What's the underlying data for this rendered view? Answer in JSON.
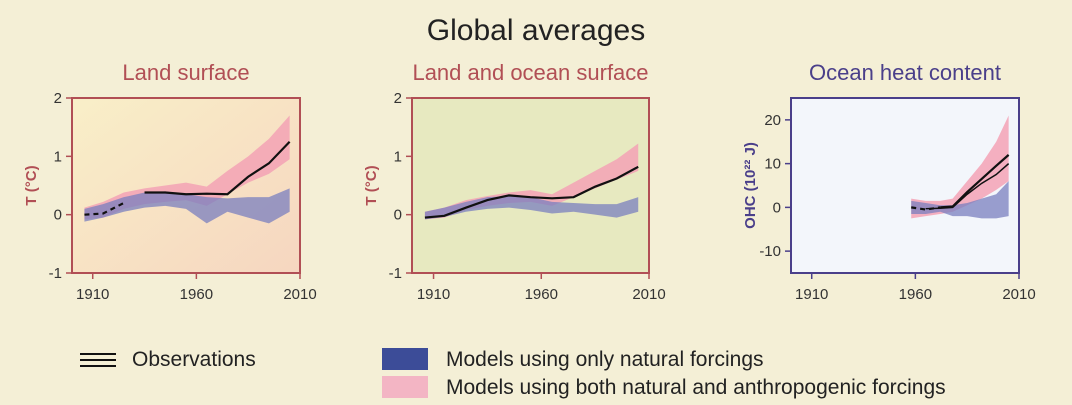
{
  "title": "Global averages",
  "chart_data": [
    {
      "type": "line",
      "title": "Land surface",
      "ylabel": "T (°C)",
      "xlabel": "",
      "xlim": [
        1900,
        2010
      ],
      "ylim": [
        -1,
        2
      ],
      "xticks": [
        "1910",
        "1960",
        "2010"
      ],
      "yticks": [
        "-1",
        "0",
        "1",
        "2"
      ],
      "background": "#f7e3bf",
      "frame_color": "#b14f55",
      "title_color": "#b14f55",
      "series": [
        {
          "name": "Observations",
          "style": "black-line",
          "x": [
            1906,
            1915,
            1925,
            1935,
            1945,
            1955,
            1965,
            1975,
            1985,
            1995,
            2005
          ],
          "y": [
            0.0,
            0.02,
            0.2,
            0.38,
            0.38,
            0.35,
            0.36,
            0.35,
            0.65,
            0.88,
            1.25
          ],
          "dashed_until": 1930
        },
        {
          "name": "Models using both natural and anthropogenic forcings",
          "style": "band",
          "x": [
            1906,
            1915,
            1925,
            1935,
            1945,
            1955,
            1965,
            1975,
            1985,
            1995,
            2005
          ],
          "low": [
            -0.08,
            -0.05,
            0.1,
            0.18,
            0.22,
            0.25,
            0.15,
            0.35,
            0.55,
            0.7,
            0.95
          ],
          "high": [
            0.12,
            0.22,
            0.38,
            0.45,
            0.5,
            0.55,
            0.48,
            0.75,
            1.0,
            1.3,
            1.7
          ]
        },
        {
          "name": "Models using only natural forcings",
          "style": "band",
          "x": [
            1906,
            1915,
            1925,
            1935,
            1945,
            1955,
            1965,
            1975,
            1985,
            1995,
            2005
          ],
          "low": [
            -0.12,
            -0.05,
            0.05,
            0.12,
            0.15,
            0.1,
            -0.15,
            0.05,
            -0.05,
            -0.15,
            0.05
          ],
          "high": [
            0.1,
            0.18,
            0.3,
            0.38,
            0.4,
            0.35,
            0.3,
            0.28,
            0.3,
            0.3,
            0.45
          ]
        }
      ]
    },
    {
      "type": "line",
      "title": "Land and ocean surface",
      "ylabel": "T (°C)",
      "xlabel": "",
      "xlim": [
        1900,
        2010
      ],
      "ylim": [
        -1,
        2
      ],
      "xticks": [
        "1910",
        "1960",
        "2010"
      ],
      "yticks": [
        "-1",
        "0",
        "1",
        "2"
      ],
      "background": "#e7e9c0",
      "frame_color": "#b14f55",
      "title_color": "#b14f55",
      "series": [
        {
          "name": "Observations",
          "style": "black-line",
          "x": [
            1906,
            1915,
            1925,
            1935,
            1945,
            1955,
            1965,
            1975,
            1985,
            1995,
            2005
          ],
          "y": [
            -0.05,
            -0.02,
            0.12,
            0.25,
            0.33,
            0.3,
            0.28,
            0.3,
            0.48,
            0.62,
            0.82
          ],
          "dashed_until": 0
        },
        {
          "name": "Models using both natural and anthropogenic forcings",
          "style": "band",
          "x": [
            1906,
            1915,
            1925,
            1935,
            1945,
            1955,
            1965,
            1975,
            1985,
            1995,
            2005
          ],
          "low": [
            -0.08,
            -0.05,
            0.08,
            0.15,
            0.2,
            0.22,
            0.15,
            0.3,
            0.45,
            0.6,
            0.75
          ],
          "high": [
            0.05,
            0.12,
            0.25,
            0.32,
            0.38,
            0.42,
            0.35,
            0.55,
            0.75,
            0.95,
            1.22
          ]
        },
        {
          "name": "Models using only natural forcings",
          "style": "band",
          "x": [
            1906,
            1915,
            1925,
            1935,
            1945,
            1955,
            1965,
            1975,
            1985,
            1995,
            2005
          ],
          "low": [
            -0.08,
            -0.04,
            0.05,
            0.1,
            0.12,
            0.08,
            0.02,
            0.05,
            0.0,
            -0.05,
            0.05
          ],
          "high": [
            0.05,
            0.12,
            0.22,
            0.3,
            0.32,
            0.3,
            0.22,
            0.2,
            0.18,
            0.18,
            0.3
          ]
        }
      ]
    },
    {
      "type": "line",
      "title": "Ocean heat content",
      "ylabel": "OHC (10²² J)",
      "xlabel": "",
      "xlim": [
        1900,
        2010
      ],
      "ylim": [
        -15,
        25
      ],
      "xticks": [
        "1910",
        "1960",
        "2010"
      ],
      "yticks": [
        "-10",
        "0",
        "10",
        "20"
      ],
      "background": "#f3f6fb",
      "frame_color": "#4a3f8a",
      "title_color": "#4a3f8a",
      "series": [
        {
          "name": "Observations",
          "style": "black-line",
          "x": [
            1958,
            1965,
            1972,
            1978,
            1985,
            1992,
            1999,
            2005
          ],
          "y": [
            0.0,
            -0.5,
            0.0,
            0.2,
            3.5,
            6.5,
            9.5,
            12.0
          ],
          "dashed_until": 1972
        },
        {
          "name": "Observations",
          "style": "black-line-thin",
          "x": [
            1965,
            1972,
            1978,
            1985,
            1992,
            1999,
            2005
          ],
          "y": [
            -0.3,
            -0.2,
            0.0,
            3.0,
            5.5,
            7.5,
            10.0
          ],
          "dashed_until": 0
        },
        {
          "name": "Models using both natural and anthropogenic forcings",
          "style": "band",
          "x": [
            1958,
            1965,
            1972,
            1978,
            1985,
            1992,
            1999,
            2005
          ],
          "low": [
            -2.5,
            -2.0,
            -1.5,
            -1.0,
            0.5,
            2.0,
            4.0,
            6.0
          ],
          "high": [
            2.0,
            1.5,
            1.5,
            2.0,
            6.0,
            10.0,
            15.0,
            21.0
          ]
        },
        {
          "name": "Models using only natural forcings",
          "style": "band",
          "x": [
            1958,
            1965,
            1972,
            1978,
            1985,
            1992,
            1999,
            2005
          ],
          "low": [
            -1.5,
            -1.5,
            -1.0,
            -2.0,
            -2.0,
            -2.5,
            -2.5,
            -2.0
          ],
          "high": [
            1.5,
            1.0,
            0.5,
            0.5,
            1.0,
            2.0,
            3.0,
            6.0
          ]
        }
      ]
    }
  ],
  "legend": {
    "observations": "Observations",
    "natural": "Models using only natural forcings",
    "both": "Models using both natural and anthropogenic forcings"
  },
  "colors": {
    "natural_band": "#7a7fbf",
    "anthropogenic_band": "#f3a2b5",
    "natural_legend": "#3c4c98",
    "anthropogenic_legend": "#f3b5c4",
    "observations": "#111111"
  }
}
